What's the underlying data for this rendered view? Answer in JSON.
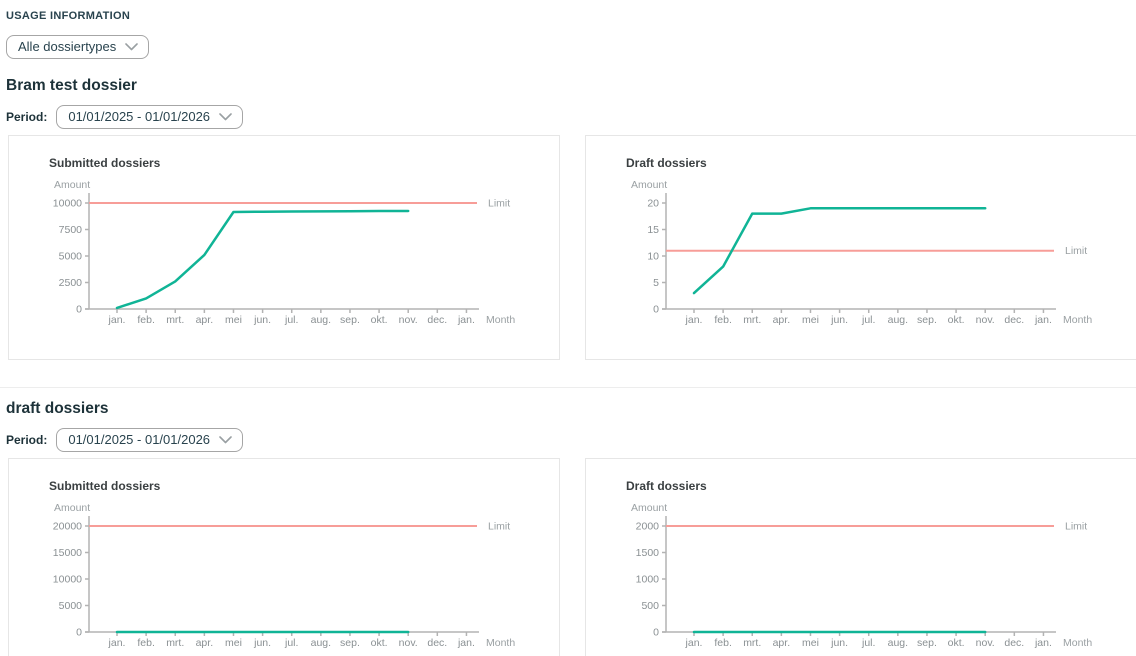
{
  "page": {
    "header": "USAGE INFORMATION"
  },
  "filters": {
    "dossiertype": {
      "value": "Alle dossiertypes"
    }
  },
  "sections": [
    {
      "title": "Bram test dossier",
      "period_label": "Period:",
      "period_value": "01/01/2025 - 01/01/2026"
    },
    {
      "title": "draft dossiers",
      "period_label": "Period:",
      "period_value": "01/01/2025 - 01/01/2026"
    }
  ],
  "colors": {
    "series_teal": "#10b496",
    "limit_red": "#f79d98",
    "axis_gray": "#b3b3b3",
    "heading_dark": "#29434e"
  },
  "chart_data": [
    {
      "type": "line",
      "title": "Submitted dossiers",
      "xlabel": "Month",
      "ylabel": "Amount",
      "categories": [
        "jan.",
        "feb.",
        "mrt.",
        "apr.",
        "mei",
        "jun.",
        "jul.",
        "aug.",
        "sep.",
        "okt.",
        "nov.",
        "dec.",
        "jan."
      ],
      "yticks": [
        0,
        2500,
        5000,
        7500,
        10000
      ],
      "ylim": [
        0,
        10000
      ],
      "grid": false,
      "series": [
        {
          "name": "Submitted dossiers",
          "values": [
            100,
            1000,
            2600,
            5100,
            9150,
            9180,
            9200,
            9210,
            9220,
            9240,
            9250
          ]
        }
      ],
      "limit": {
        "label": "Limit",
        "value": 10000
      }
    },
    {
      "type": "line",
      "title": "Draft dossiers",
      "xlabel": "Month",
      "ylabel": "Amount",
      "categories": [
        "jan.",
        "feb.",
        "mrt.",
        "apr.",
        "mei",
        "jun.",
        "jul.",
        "aug.",
        "sep.",
        "okt.",
        "nov.",
        "dec.",
        "jan."
      ],
      "yticks": [
        0,
        5,
        10,
        15,
        20
      ],
      "ylim": [
        0,
        20
      ],
      "grid": false,
      "series": [
        {
          "name": "Draft dossiers",
          "values": [
            3,
            8,
            18,
            18,
            19,
            19,
            19,
            19,
            19,
            19,
            19
          ]
        }
      ],
      "limit": {
        "label": "Limit",
        "value": 11
      }
    },
    {
      "type": "line",
      "title": "Submitted dossiers",
      "xlabel": "Month",
      "ylabel": "Amount",
      "categories": [
        "jan.",
        "feb.",
        "mrt.",
        "apr.",
        "mei",
        "jun.",
        "jul.",
        "aug.",
        "sep.",
        "okt.",
        "nov.",
        "dec.",
        "jan."
      ],
      "yticks": [
        0,
        5000,
        10000,
        15000,
        20000
      ],
      "ylim": [
        0,
        20000
      ],
      "grid": false,
      "series": [
        {
          "name": "Submitted dossiers",
          "values": [
            0,
            0,
            0,
            0,
            0,
            0,
            0,
            0,
            0,
            0,
            0
          ]
        }
      ],
      "limit": {
        "label": "Limit",
        "value": 20000
      }
    },
    {
      "type": "line",
      "title": "Draft dossiers",
      "xlabel": "Month",
      "ylabel": "Amount",
      "categories": [
        "jan.",
        "feb.",
        "mrt.",
        "apr.",
        "mei",
        "jun.",
        "jul.",
        "aug.",
        "sep.",
        "okt.",
        "nov.",
        "dec.",
        "jan."
      ],
      "yticks": [
        0,
        500,
        1000,
        1500,
        2000
      ],
      "ylim": [
        0,
        2000
      ],
      "grid": false,
      "series": [
        {
          "name": "Draft dossiers",
          "values": [
            0,
            0,
            0,
            0,
            0,
            0,
            0,
            0,
            0,
            0,
            0
          ]
        }
      ],
      "limit": {
        "label": "Limit",
        "value": 2000
      }
    }
  ]
}
